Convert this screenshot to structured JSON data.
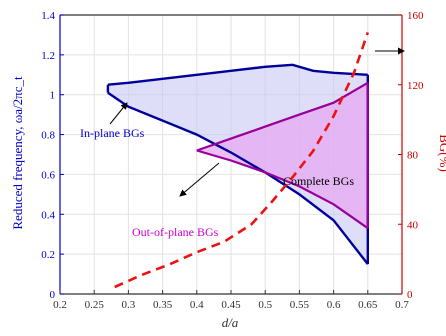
{
  "chart_data": {
    "type": "line",
    "xlabel": "d/a",
    "ylabel_left": "Reduced frequency, ωa/2πc_t",
    "ylabel_right": "BG(%)",
    "xlim": [
      0.2,
      0.7
    ],
    "ylim_left": [
      0,
      1.4
    ],
    "ylim_right": [
      0,
      160
    ],
    "x_ticks": [
      "0.2",
      "0.25",
      "0.3",
      "0.35",
      "0.4",
      "0.45",
      "0.5",
      "0.55",
      "0.6",
      "0.65",
      "0.7"
    ],
    "y_left_ticks": [
      "0",
      "0.2",
      "0.4",
      "0.6",
      "0.8",
      "1",
      "1.2",
      "1.4"
    ],
    "y_right_ticks": [
      "0",
      "40",
      "80",
      "120",
      "160"
    ],
    "grid": true,
    "colors": {
      "in_plane": "#000099",
      "in_plane_fill": "#c8c8f5",
      "out_of_plane": "#990099",
      "out_of_plane_fill": "#e6a8f0",
      "bg_curve": "#ee1111",
      "left_axis": "#0000cc",
      "right_axis": "#cc0000"
    },
    "in_plane_band": {
      "upper": [
        [
          0.27,
          1.05
        ],
        [
          0.3,
          1.06
        ],
        [
          0.35,
          1.08
        ],
        [
          0.4,
          1.1
        ],
        [
          0.45,
          1.12
        ],
        [
          0.5,
          1.14
        ],
        [
          0.54,
          1.15
        ],
        [
          0.57,
          1.12
        ],
        [
          0.6,
          1.11
        ],
        [
          0.65,
          1.1
        ]
      ],
      "lower": [
        [
          0.27,
          1.01
        ],
        [
          0.3,
          0.94
        ],
        [
          0.35,
          0.87
        ],
        [
          0.4,
          0.8
        ],
        [
          0.45,
          0.71
        ],
        [
          0.5,
          0.61
        ],
        [
          0.55,
          0.5
        ],
        [
          0.6,
          0.37
        ],
        [
          0.65,
          0.15
        ]
      ]
    },
    "out_of_plane_band": {
      "upper": [
        [
          0.4,
          0.72
        ],
        [
          0.45,
          0.78
        ],
        [
          0.5,
          0.84
        ],
        [
          0.55,
          0.9
        ],
        [
          0.6,
          0.96
        ],
        [
          0.65,
          1.06
        ]
      ],
      "lower": [
        [
          0.4,
          0.72
        ],
        [
          0.45,
          0.67
        ],
        [
          0.5,
          0.61
        ],
        [
          0.55,
          0.54
        ],
        [
          0.6,
          0.45
        ],
        [
          0.65,
          0.33
        ]
      ]
    },
    "bg_percent": {
      "x": [
        0.28,
        0.32,
        0.36,
        0.4,
        0.44,
        0.48,
        0.51,
        0.54,
        0.57,
        0.6,
        0.63,
        0.65
      ],
      "y": [
        4,
        11,
        17,
        24,
        30,
        40,
        53,
        67,
        82,
        102,
        127,
        150
      ]
    },
    "annotations": [
      {
        "text": "In-plane BGs",
        "color": "#0000cc"
      },
      {
        "text": "Out-of-plane BGs",
        "color": "#cc00cc"
      },
      {
        "text": "Complete BGs",
        "color": "#000000"
      }
    ]
  }
}
